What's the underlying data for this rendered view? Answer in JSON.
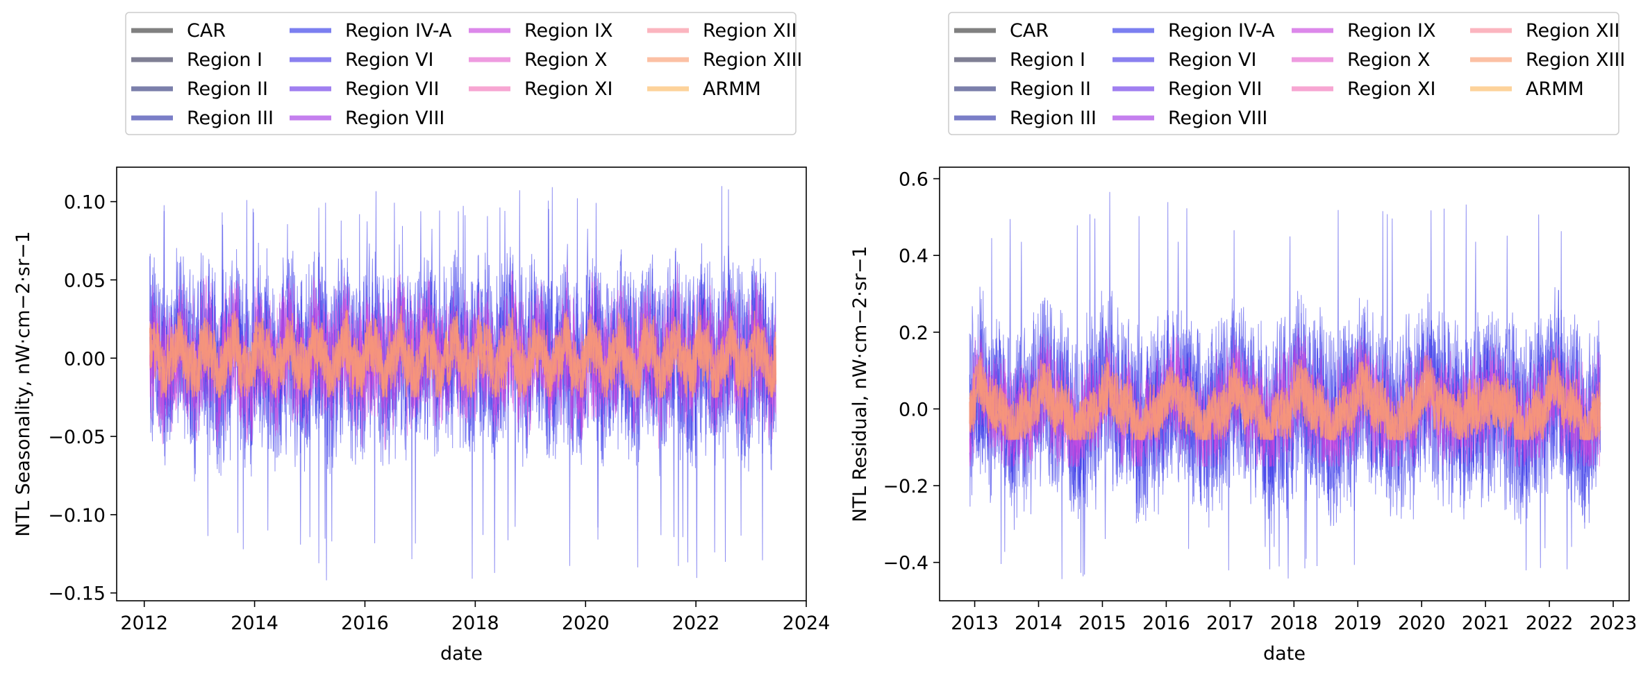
{
  "figure": {
    "background": "#ffffff"
  },
  "legend": {
    "columns": 4,
    "entries": [
      {
        "label": "CAR",
        "color": "#808080"
      },
      {
        "label": "Region I",
        "color": "#7f7f94"
      },
      {
        "label": "Region II",
        "color": "#7b7fab"
      },
      {
        "label": "Region III",
        "color": "#7a7ec7"
      },
      {
        "label": "Region IV-A",
        "color": "#7b7ff0"
      },
      {
        "label": "Region VI",
        "color": "#8a80ef"
      },
      {
        "label": "Region VII",
        "color": "#a07ff0"
      },
      {
        "label": "Region VIII",
        "color": "#c47fee"
      },
      {
        "label": "Region IX",
        "color": "#dc88ea"
      },
      {
        "label": "Region X",
        "color": "#ee9be0"
      },
      {
        "label": "Region XI",
        "color": "#f7a6d2"
      },
      {
        "label": "Region XII",
        "color": "#fbb5bf"
      },
      {
        "label": "Region XIII",
        "color": "#fcc0a4"
      },
      {
        "label": "ARMM",
        "color": "#fdd29a"
      }
    ]
  },
  "chart_data": [
    {
      "type": "line",
      "xlabel": "date",
      "ylabel": "NTL Seasonality, nW·cm−2·sr−1",
      "xlim": [
        2011.5,
        2024.0
      ],
      "ylim": [
        -0.155,
        0.122
      ],
      "x_ticks": [
        "2012",
        "2014",
        "2016",
        "2018",
        "2020",
        "2022",
        "2024"
      ],
      "x_tick_values": [
        2012,
        2014,
        2016,
        2018,
        2020,
        2022,
        2024
      ],
      "y_ticks": [
        "−0.15",
        "−0.10",
        "−0.05",
        "0.00",
        "0.05",
        "0.10"
      ],
      "y_tick_values": [
        -0.15,
        -0.1,
        -0.05,
        0.0,
        0.05,
        0.1
      ],
      "date_range": [
        "2012-01",
        "2023-06"
      ],
      "series_envelope": [
        {
          "name": "blue regions (CAR–Region VIII)",
          "color": "#2e2ee8",
          "min": -0.143,
          "max": 0.11
        },
        {
          "name": "magenta regions (Region IX–XI)",
          "color": "#dd44dd",
          "min": -0.06,
          "max": 0.075
        },
        {
          "name": "salmon regions (Region XII–ARMM)",
          "color": "#f7967a",
          "min": -0.025,
          "max": 0.035
        }
      ],
      "seasonal_period_years": 1.0,
      "annual_extremes": {
        "peak_high": 0.11,
        "peak_low": -0.143
      }
    },
    {
      "type": "line",
      "xlabel": "date",
      "ylabel": "NTL Residual, nW·cm−2·sr−1",
      "xlim": [
        2012.45,
        2023.25
      ],
      "ylim": [
        -0.5,
        0.63
      ],
      "x_ticks": [
        "2013",
        "2014",
        "2015",
        "2016",
        "2017",
        "2018",
        "2019",
        "2020",
        "2021",
        "2022",
        "2023"
      ],
      "x_tick_values": [
        2013,
        2014,
        2015,
        2016,
        2017,
        2018,
        2019,
        2020,
        2021,
        2022,
        2023
      ],
      "y_ticks": [
        "−0.4",
        "−0.2",
        "0.0",
        "0.2",
        "0.4",
        "0.6"
      ],
      "y_tick_values": [
        -0.4,
        -0.2,
        0.0,
        0.2,
        0.4,
        0.6
      ],
      "date_range": [
        "2012-11",
        "2022-10"
      ],
      "series_envelope": [
        {
          "name": "blue regions (CAR–Region VIII)",
          "color": "#2e2ee8",
          "min": -0.45,
          "max": 0.58
        },
        {
          "name": "magenta regions (Region IX–XI)",
          "color": "#dd44dd",
          "min": -0.15,
          "max": 0.3
        },
        {
          "name": "salmon regions (Region XII–ARMM)",
          "color": "#f7967a",
          "min": -0.08,
          "max": 0.15
        }
      ],
      "annual_peaks": [
        {
          "x": 2013.3,
          "y": 0.57
        },
        {
          "x": 2014.35,
          "y": 0.42
        },
        {
          "x": 2015.3,
          "y": 0.57
        },
        {
          "x": 2016.35,
          "y": 0.58
        },
        {
          "x": 2017.4,
          "y": 0.41
        },
        {
          "x": 2018.25,
          "y": 0.53
        },
        {
          "x": 2019.25,
          "y": 0.53
        },
        {
          "x": 2020.2,
          "y": 0.54
        },
        {
          "x": 2021.3,
          "y": 0.49
        },
        {
          "x": 2022.2,
          "y": 0.42
        }
      ]
    }
  ]
}
